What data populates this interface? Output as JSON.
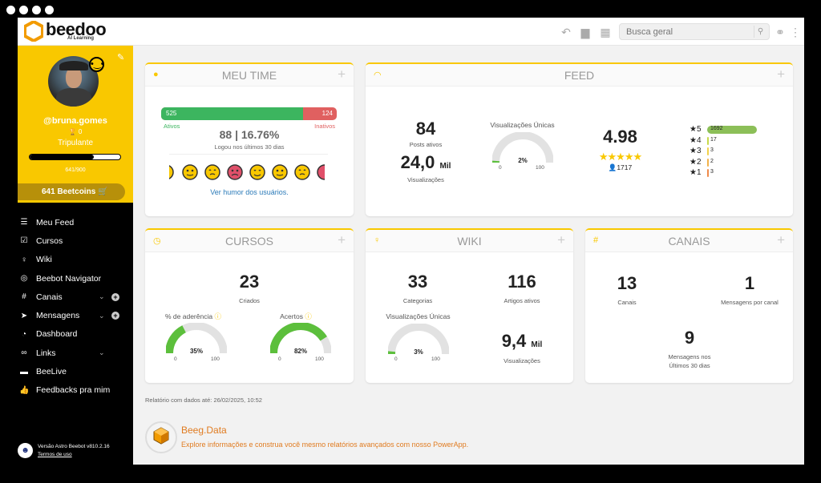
{
  "brand": {
    "name": "beedoo",
    "subtitle": "AI Learning"
  },
  "search": {
    "placeholder": "Busca geral"
  },
  "profile": {
    "username": "@bruna.gomes",
    "trophies": "0",
    "role": "Tripulante",
    "xp_text": "641/900",
    "xp_fraction": 0.712,
    "coins_label": "641  Beetcoins",
    "mood": "neutral"
  },
  "nav": {
    "items": [
      {
        "label": "Meu Feed",
        "icon": "checklist-icon"
      },
      {
        "label": "Cursos",
        "icon": "check-square-icon"
      },
      {
        "label": "Wiki",
        "icon": "lightbulb-icon"
      },
      {
        "label": "Beebot Navigator",
        "icon": "compass-icon"
      },
      {
        "label": "Canais",
        "icon": "hashtag-icon"
      },
      {
        "label": "Mensagens",
        "icon": "send-icon"
      },
      {
        "label": "Dashboard",
        "icon": "speedometer-icon"
      },
      {
        "label": "Links",
        "icon": "link-icon"
      },
      {
        "label": "BeeLive",
        "icon": "video-icon"
      },
      {
        "label": "Feedbacks pra mim",
        "icon": "thumbs-up-icon"
      }
    ]
  },
  "version": {
    "text": "Versão Astro Beebot v810.2.16",
    "terms": "Termos de uso"
  },
  "meu_time": {
    "title": "MEU TIME",
    "active_count": "525",
    "inactive_count": "124",
    "active_label": "Ativos",
    "inactive_label": "Inativos",
    "active_fraction": 0.81,
    "summary": "88 | 16.76%",
    "summary_caption": "Logou nos últimos 30 dias",
    "humor_link": "Ver humor dos usuários."
  },
  "feed": {
    "title": "FEED",
    "posts_value": "84",
    "posts_label": "Posts ativos",
    "views_value": "24,0",
    "views_unit": "Mil",
    "views_label": "Visualizações",
    "unique_title": "Visualizações Únicas",
    "unique_pct": "2%",
    "unique_fraction": 0.02,
    "gauge_min": "0",
    "gauge_max": "100",
    "rating": "4.98",
    "rating_count": "1717",
    "stars": [
      {
        "label": "5",
        "count": "1692",
        "value": 1692
      },
      {
        "label": "4",
        "count": "17",
        "value": 17
      },
      {
        "label": "3",
        "count": "3",
        "value": 3
      },
      {
        "label": "2",
        "count": "2",
        "value": 2
      },
      {
        "label": "1",
        "count": "3",
        "value": 3
      }
    ]
  },
  "cursos": {
    "title": "CURSOS",
    "created_value": "23",
    "created_label": "Criados",
    "adherence_label": "% de aderência",
    "adherence_pct": "35%",
    "adherence_fraction": 0.35,
    "hits_label": "Acertos",
    "hits_pct": "82%",
    "hits_fraction": 0.82,
    "gauge_min": "0",
    "gauge_max": "100"
  },
  "wiki": {
    "title": "WIKI",
    "categories_value": "33",
    "categories_label": "Categorias",
    "articles_value": "116",
    "articles_label": "Artigos ativos",
    "unique_title": "Visualizações Únicas",
    "unique_pct": "3%",
    "unique_fraction": 0.03,
    "views_value": "9,4",
    "views_unit": "Mil",
    "views_label": "Visualizações",
    "gauge_min": "0",
    "gauge_max": "100"
  },
  "canais": {
    "title": "CANAIS",
    "channels_value": "13",
    "channels_label": "Canais",
    "per_channel_value": "1",
    "per_channel_label": "Mensagens por canal",
    "recent_value": "9",
    "recent_label_1": "Mensagens nos",
    "recent_label_2": "Últimos 30 dias"
  },
  "report": {
    "text": "Relatório com dados até: 26/02/2025, 10:52"
  },
  "beeg": {
    "title": "Beeg.Data",
    "desc": "Explore informações e construa você mesmo relatórios avançados com nosso PowerApp."
  },
  "colors": {
    "accent": "#f9c800",
    "green": "#5cbf3c",
    "red": "#e06060",
    "link": "#2a7ab8",
    "orange": "#e07b20"
  }
}
